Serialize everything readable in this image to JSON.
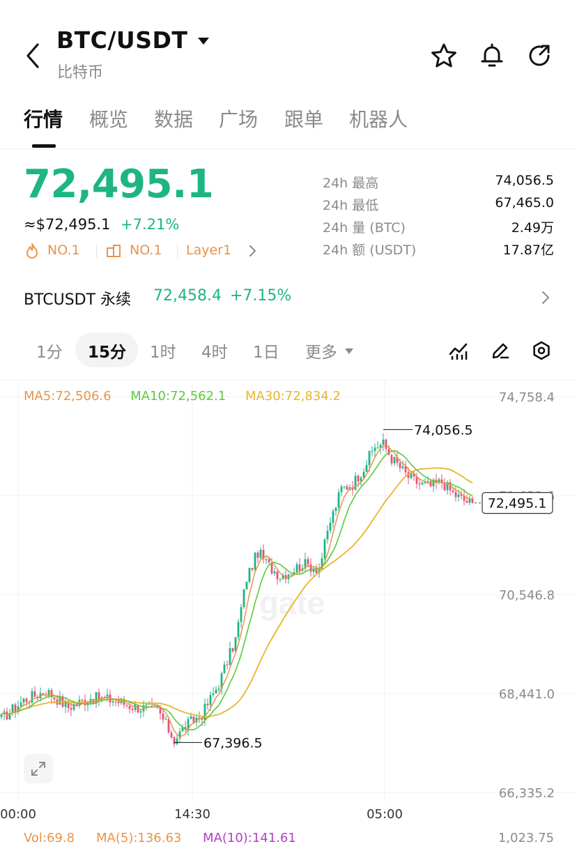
{
  "header": {
    "pair": "BTC/USDT",
    "subtitle": "比特币",
    "icons": [
      "back-chevron-icon",
      "caret-down-icon",
      "star-icon",
      "bell-icon",
      "share-icon"
    ]
  },
  "tabs": [
    {
      "label": "行情",
      "active": true
    },
    {
      "label": "概览",
      "active": false
    },
    {
      "label": "数据",
      "active": false
    },
    {
      "label": "广场",
      "active": false
    },
    {
      "label": "跟单",
      "active": false
    },
    {
      "label": "机器人",
      "active": false
    }
  ],
  "price": {
    "last": "72,495.1",
    "usd": "≈$72,495.1",
    "change": "+7.21%",
    "up_color": "#1db584",
    "down_color": "#e8507a"
  },
  "tags": [
    {
      "icon": "flame-icon",
      "label": "NO.1"
    },
    {
      "icon": "cube-icon",
      "label": "NO.1"
    },
    {
      "icon": "",
      "label": "Layer1"
    }
  ],
  "stats": [
    {
      "label": "24h  最高",
      "value": "74,056.5"
    },
    {
      "label": "24h  最低",
      "value": "67,465.0"
    },
    {
      "label": "24h  量 (BTC)",
      "value": "2.49万"
    },
    {
      "label": "24h  额 (USDT)",
      "value": "17.87亿"
    }
  ],
  "perpetual": {
    "name": "BTCUSDT 永续",
    "price": "72,458.4",
    "change": "+7.15%"
  },
  "intervals": [
    {
      "label": "1分",
      "active": false
    },
    {
      "label": "15分",
      "active": true
    },
    {
      "label": "1时",
      "active": false
    },
    {
      "label": "4时",
      "active": false
    },
    {
      "label": "1日",
      "active": false
    },
    {
      "label": "更多",
      "active": false
    }
  ],
  "chart_tools": [
    "indicator-icon",
    "draw-pen-icon",
    "settings-icon"
  ],
  "ma_legend": [
    {
      "label": "MA5:72,506.6",
      "color": "#e8944a"
    },
    {
      "label": "MA10:72,562.1",
      "color": "#5ac93c"
    },
    {
      "label": "MA30:72,834.2",
      "color": "#e8b52a"
    }
  ],
  "chart_data": {
    "type": "candlestick",
    "y_ticks": [
      "74,758.4",
      "72,652.6",
      "70,546.8",
      "68,441.0",
      "66,335.2"
    ],
    "ylim": [
      66335.2,
      74758.4
    ],
    "x_ticks": [
      "00:00",
      "14:30",
      "05:00"
    ],
    "high_marker": {
      "label": "74,056.5",
      "value": 74056.5
    },
    "low_marker": {
      "label": "67,396.5",
      "value": 67396.5
    },
    "current_price": {
      "label": "72,495.1",
      "value": 72495.1
    },
    "watermark": "gate"
  },
  "volume_legend": {
    "vol": "Vol:69.8",
    "ma5": "MA(5):136.63",
    "ma10": "MA(10):141.61",
    "right": "1,023.75",
    "vol_color": "#e8944a",
    "ma5_color": "#e8944a",
    "ma10_color": "#b040c0"
  }
}
